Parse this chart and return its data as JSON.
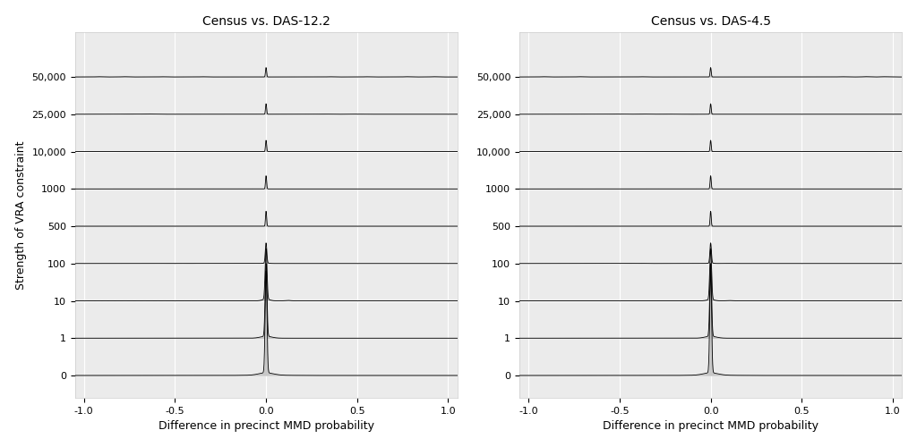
{
  "titles": [
    "Census vs. DAS-12.2",
    "Census vs. DAS-4.5"
  ],
  "xlabel": "Difference in precinct MMD probability",
  "ylabel": "Strength of VRA constraint",
  "ytick_labels": [
    "0",
    "1",
    "10",
    "100",
    "500",
    "1000",
    "10,000",
    "25,000",
    "50,000"
  ],
  "ytick_positions": [
    0,
    1,
    2,
    3,
    4,
    5,
    6,
    7,
    8
  ],
  "xlim": [
    -1.05,
    1.05
  ],
  "background_color": "#ffffff",
  "panel_bg": "#ebebeb",
  "line_color": "#000000",
  "fill_color": "#c8c8c8",
  "title_fontsize": 10,
  "axis_fontsize": 9,
  "tick_fontsize": 8,
  "grid_color": "#ffffff",
  "spine_color": "#cccccc"
}
